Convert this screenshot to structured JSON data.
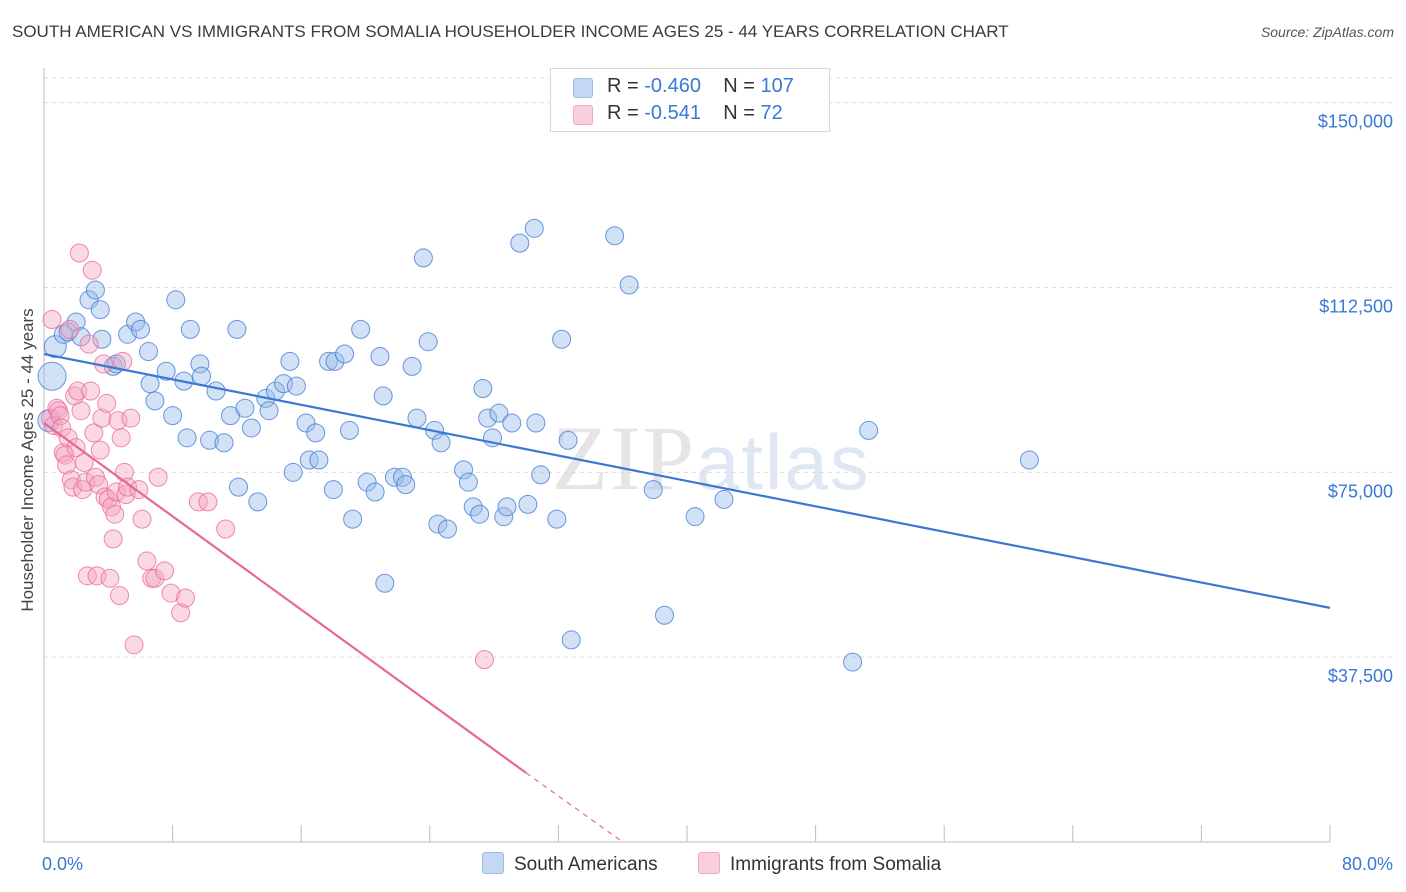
{
  "title": "SOUTH AMERICAN VS IMMIGRANTS FROM SOMALIA HOUSEHOLDER INCOME AGES 25 - 44 YEARS CORRELATION CHART",
  "source": "Source: ZipAtlas.com",
  "watermark": {
    "zip": "ZIP",
    "atlas": "atlas"
  },
  "legend": [
    {
      "r_label": "R =",
      "r_value": "-0.460",
      "n_label": "N =",
      "n_value": "107",
      "color": "#9bbce8"
    },
    {
      "r_label": "R =",
      "r_value": " -0.541",
      "n_label": "N =",
      "n_value": " 72",
      "color": "#f3a9c4"
    }
  ],
  "bottom_legend": [
    {
      "label": "South Americans",
      "color": "#9bbce8"
    },
    {
      "label": "Immigrants from Somalia",
      "color": "#f3a9c4"
    }
  ],
  "chart_data": {
    "type": "scatter",
    "title": "SOUTH AMERICAN VS IMMIGRANTS FROM SOMALIA HOUSEHOLDER INCOME AGES 25 - 44 YEARS CORRELATION CHART",
    "xlabel": "",
    "ylabel": "Householder Income Ages 25 - 44 years",
    "xlim": [
      0,
      80
    ],
    "ylim": [
      0,
      155000
    ],
    "x_tick_labels": [
      "0.0%",
      "80.0%"
    ],
    "y_tick_values": [
      37500,
      75000,
      112500,
      150000
    ],
    "y_tick_labels": [
      "$37,500",
      "$75,000",
      "$112,500",
      "$150,000"
    ],
    "grid": true,
    "legend_position": "top-center",
    "series": [
      {
        "name": "South Americans",
        "color": "#3a78d4",
        "fill": "#9bbce8",
        "trend": {
          "x": [
            0,
            80
          ],
          "y": [
            99000,
            47500
          ]
        },
        "points": [
          [
            0.3,
            85500
          ],
          [
            0.5,
            94500
          ],
          [
            0.7,
            100500
          ],
          [
            1.2,
            103000
          ],
          [
            1.5,
            103500
          ],
          [
            2.0,
            105500
          ],
          [
            2.3,
            102500
          ],
          [
            2.8,
            110000
          ],
          [
            3.2,
            112000
          ],
          [
            3.5,
            108000
          ],
          [
            3.6,
            102000
          ],
          [
            4.3,
            96500
          ],
          [
            4.5,
            97000
          ],
          [
            5.2,
            103000
          ],
          [
            5.7,
            105500
          ],
          [
            6.0,
            104000
          ],
          [
            6.5,
            99500
          ],
          [
            6.6,
            93000
          ],
          [
            6.9,
            89500
          ],
          [
            7.6,
            95500
          ],
          [
            8.2,
            110000
          ],
          [
            8.0,
            86500
          ],
          [
            8.7,
            93500
          ],
          [
            8.9,
            82000
          ],
          [
            9.1,
            104000
          ],
          [
            9.7,
            97000
          ],
          [
            9.8,
            94500
          ],
          [
            10.3,
            81500
          ],
          [
            10.7,
            91500
          ],
          [
            11.2,
            81000
          ],
          [
            11.6,
            86500
          ],
          [
            12.0,
            104000
          ],
          [
            12.1,
            72000
          ],
          [
            12.5,
            88000
          ],
          [
            12.9,
            84000
          ],
          [
            13.3,
            69000
          ],
          [
            13.8,
            90000
          ],
          [
            14.0,
            87500
          ],
          [
            14.4,
            91500
          ],
          [
            14.9,
            93000
          ],
          [
            15.3,
            97500
          ],
          [
            15.5,
            75000
          ],
          [
            15.7,
            92500
          ],
          [
            16.3,
            85000
          ],
          [
            16.5,
            77500
          ],
          [
            16.9,
            83000
          ],
          [
            17.1,
            77500
          ],
          [
            17.7,
            97500
          ],
          [
            18.1,
            97500
          ],
          [
            18.0,
            71500
          ],
          [
            18.7,
            99000
          ],
          [
            19.0,
            83500
          ],
          [
            19.2,
            65500
          ],
          [
            19.7,
            104000
          ],
          [
            20.1,
            73000
          ],
          [
            20.6,
            71000
          ],
          [
            20.9,
            98500
          ],
          [
            21.1,
            90500
          ],
          [
            21.2,
            52500
          ],
          [
            21.8,
            74000
          ],
          [
            22.3,
            74000
          ],
          [
            22.5,
            72500
          ],
          [
            22.9,
            96500
          ],
          [
            23.2,
            86000
          ],
          [
            23.6,
            118500
          ],
          [
            23.9,
            101500
          ],
          [
            24.3,
            83500
          ],
          [
            24.5,
            64500
          ],
          [
            24.7,
            81000
          ],
          [
            25.1,
            63500
          ],
          [
            26.1,
            75500
          ],
          [
            26.4,
            73000
          ],
          [
            26.7,
            68000
          ],
          [
            27.1,
            66500
          ],
          [
            27.3,
            92000
          ],
          [
            27.6,
            86000
          ],
          [
            27.9,
            82000
          ],
          [
            28.3,
            87000
          ],
          [
            28.6,
            66000
          ],
          [
            28.8,
            68000
          ],
          [
            29.1,
            85000
          ],
          [
            29.6,
            121500
          ],
          [
            30.1,
            68500
          ],
          [
            30.6,
            85000
          ],
          [
            30.5,
            124500
          ],
          [
            30.9,
            74500
          ],
          [
            31.9,
            65500
          ],
          [
            32.2,
            102000
          ],
          [
            32.6,
            81500
          ],
          [
            32.8,
            41000
          ],
          [
            35.5,
            123000
          ],
          [
            36.4,
            113000
          ],
          [
            37.9,
            71500
          ],
          [
            38.6,
            46000
          ],
          [
            40.5,
            66000
          ],
          [
            42.3,
            69500
          ],
          [
            50.3,
            36500
          ],
          [
            51.3,
            83500
          ],
          [
            61.3,
            77500
          ]
        ]
      },
      {
        "name": "Immigrants from Somalia",
        "color": "#e8679a",
        "fill": "#f3a9c4",
        "trend": {
          "x": [
            0,
            30.0
          ],
          "y": [
            85000,
            14000
          ]
        },
        "trend_dashed": {
          "x": [
            30.0,
            36.0
          ],
          "y": [
            14000,
            0
          ]
        },
        "points": [
          [
            0.4,
            86000
          ],
          [
            0.6,
            84500
          ],
          [
            0.5,
            106000
          ],
          [
            0.8,
            88000
          ],
          [
            0.9,
            87500
          ],
          [
            1.0,
            86500
          ],
          [
            1.1,
            84000
          ],
          [
            1.2,
            79000
          ],
          [
            1.3,
            78500
          ],
          [
            1.4,
            76500
          ],
          [
            1.5,
            82000
          ],
          [
            1.6,
            104000
          ],
          [
            1.7,
            73500
          ],
          [
            1.8,
            72000
          ],
          [
            1.9,
            90500
          ],
          [
            2.0,
            80000
          ],
          [
            2.1,
            91500
          ],
          [
            2.2,
            119500
          ],
          [
            2.3,
            87500
          ],
          [
            2.4,
            71500
          ],
          [
            2.5,
            77000
          ],
          [
            2.6,
            73000
          ],
          [
            2.7,
            54000
          ],
          [
            2.8,
            101000
          ],
          [
            2.9,
            91500
          ],
          [
            3.0,
            116000
          ],
          [
            3.1,
            83000
          ],
          [
            3.2,
            74000
          ],
          [
            3.3,
            54000
          ],
          [
            3.4,
            72500
          ],
          [
            3.5,
            79500
          ],
          [
            3.6,
            86000
          ],
          [
            3.7,
            97000
          ],
          [
            3.8,
            70000
          ],
          [
            3.9,
            89000
          ],
          [
            4.0,
            69500
          ],
          [
            4.1,
            53500
          ],
          [
            4.2,
            68000
          ],
          [
            4.3,
            61500
          ],
          [
            4.4,
            66500
          ],
          [
            4.5,
            71000
          ],
          [
            4.6,
            85500
          ],
          [
            4.7,
            50000
          ],
          [
            4.8,
            82000
          ],
          [
            4.9,
            97500
          ],
          [
            5.0,
            75000
          ],
          [
            5.1,
            70500
          ],
          [
            5.2,
            72000
          ],
          [
            5.4,
            86000
          ],
          [
            5.6,
            40000
          ],
          [
            5.9,
            71500
          ],
          [
            6.1,
            65500
          ],
          [
            6.4,
            57000
          ],
          [
            6.7,
            53500
          ],
          [
            6.9,
            53500
          ],
          [
            7.1,
            74000
          ],
          [
            7.5,
            55000
          ],
          [
            7.9,
            50500
          ],
          [
            8.5,
            46500
          ],
          [
            8.8,
            49500
          ],
          [
            9.6,
            69000
          ],
          [
            10.2,
            69000
          ],
          [
            11.3,
            63500
          ],
          [
            27.4,
            37000
          ]
        ]
      }
    ]
  }
}
